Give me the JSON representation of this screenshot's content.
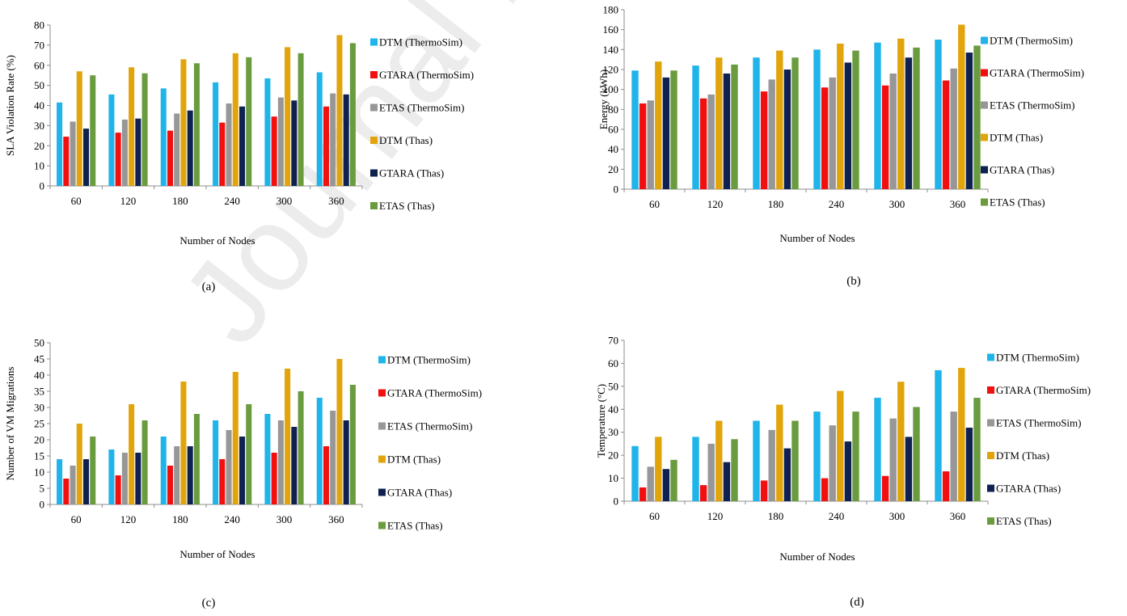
{
  "watermark": "Journal Pre-proof",
  "colors": {
    "DTM (ThermoSim)": "#1fb4ea",
    "GTARA (ThermoSim)": "#f20f0f",
    "ETAS (ThermoSim)": "#979797",
    "DTM (Thas)": "#e2a40b",
    "GTARA (Thas)": "#0e2150",
    "ETAS (Thas)": "#6a9c3f"
  },
  "chart_data": [
    {
      "type": "bar",
      "panel_label": "(a)",
      "xlabel": "Number of Nodes",
      "ylabel": "SLA Violation Rate (%)",
      "ylim": [
        0,
        80
      ],
      "yticks": [
        0,
        10,
        20,
        30,
        40,
        50,
        60,
        70,
        80
      ],
      "categories": [
        "60",
        "120",
        "180",
        "240",
        "300",
        "360"
      ],
      "legend_position": "right",
      "series": [
        {
          "name": "DTM (ThermoSim)",
          "values": [
            41.5,
            45.5,
            48.5,
            51.5,
            53.5,
            56.5
          ]
        },
        {
          "name": "GTARA (ThermoSim)",
          "values": [
            24.5,
            26.5,
            27.5,
            31.5,
            34.5,
            39.5
          ]
        },
        {
          "name": "ETAS (ThermoSim)",
          "values": [
            32,
            33,
            36,
            41,
            44,
            46
          ]
        },
        {
          "name": "DTM (Thas)",
          "values": [
            57,
            59,
            63,
            66,
            69,
            75
          ]
        },
        {
          "name": "GTARA (Thas)",
          "values": [
            28.5,
            33.5,
            37.5,
            39.5,
            42.5,
            45.5
          ]
        },
        {
          "name": "ETAS (Thas)",
          "values": [
            55,
            56,
            61,
            64,
            66,
            71
          ]
        }
      ]
    },
    {
      "type": "bar",
      "panel_label": "(b)",
      "xlabel": "Number of Nodes",
      "ylabel": "Energy (kWh)",
      "ylim": [
        0,
        180
      ],
      "yticks": [
        0,
        20,
        40,
        60,
        80,
        100,
        120,
        140,
        160,
        180
      ],
      "categories": [
        "60",
        "120",
        "180",
        "240",
        "300",
        "360"
      ],
      "legend_position": "right",
      "series": [
        {
          "name": "DTM (ThermoSim)",
          "values": [
            119,
            124,
            132,
            140,
            147,
            150
          ]
        },
        {
          "name": "GTARA (ThermoSim)",
          "values": [
            86,
            91,
            98,
            102,
            104,
            109
          ]
        },
        {
          "name": "ETAS (ThermoSim)",
          "values": [
            89,
            95,
            110,
            112,
            116,
            121
          ]
        },
        {
          "name": "DTM (Thas)",
          "values": [
            128,
            132,
            139,
            146,
            151,
            165
          ]
        },
        {
          "name": "GTARA (Thas)",
          "values": [
            112,
            116,
            120,
            127,
            132,
            137
          ]
        },
        {
          "name": "ETAS (Thas)",
          "values": [
            119,
            125,
            132,
            139,
            142,
            144
          ]
        }
      ]
    },
    {
      "type": "bar",
      "panel_label": "(c)",
      "xlabel": "Number of Nodes",
      "ylabel": "Number of VM Migrations",
      "ylim": [
        0,
        50
      ],
      "yticks": [
        0,
        5,
        10,
        15,
        20,
        25,
        30,
        35,
        40,
        45,
        50
      ],
      "categories": [
        "60",
        "120",
        "180",
        "240",
        "300",
        "360"
      ],
      "legend_position": "right",
      "series": [
        {
          "name": "DTM (ThermoSim)",
          "values": [
            14,
            17,
            21,
            26,
            28,
            33
          ]
        },
        {
          "name": "GTARA (ThermoSim)",
          "values": [
            8,
            9,
            12,
            14,
            16,
            18
          ]
        },
        {
          "name": "ETAS (ThermoSim)",
          "values": [
            12,
            16,
            18,
            23,
            26,
            29
          ]
        },
        {
          "name": "DTM (Thas)",
          "values": [
            25,
            31,
            38,
            41,
            42,
            45
          ]
        },
        {
          "name": "GTARA (Thas)",
          "values": [
            14,
            16,
            18,
            21,
            24,
            26
          ]
        },
        {
          "name": "ETAS (Thas)",
          "values": [
            21,
            26,
            28,
            31,
            35,
            37
          ]
        }
      ]
    },
    {
      "type": "bar",
      "panel_label": "(d)",
      "xlabel": "Number of Nodes",
      "ylabel": "Temperature (°C)",
      "ylim": [
        0,
        70
      ],
      "yticks": [
        0,
        10,
        20,
        30,
        40,
        50,
        60,
        70
      ],
      "categories": [
        "60",
        "120",
        "180",
        "240",
        "300",
        "360"
      ],
      "legend_position": "right",
      "series": [
        {
          "name": "DTM (ThermoSim)",
          "values": [
            24,
            28,
            35,
            39,
            45,
            57
          ]
        },
        {
          "name": "GTARA (ThermoSim)",
          "values": [
            6,
            7,
            9,
            10,
            11,
            13
          ]
        },
        {
          "name": "ETAS (ThermoSim)",
          "values": [
            15,
            25,
            31,
            33,
            36,
            39
          ]
        },
        {
          "name": "DTM (Thas)",
          "values": [
            28,
            35,
            42,
            48,
            52,
            58
          ]
        },
        {
          "name": "GTARA (Thas)",
          "values": [
            14,
            17,
            23,
            26,
            28,
            32
          ]
        },
        {
          "name": "ETAS (Thas)",
          "values": [
            18,
            27,
            35,
            39,
            41,
            45
          ]
        }
      ]
    }
  ]
}
